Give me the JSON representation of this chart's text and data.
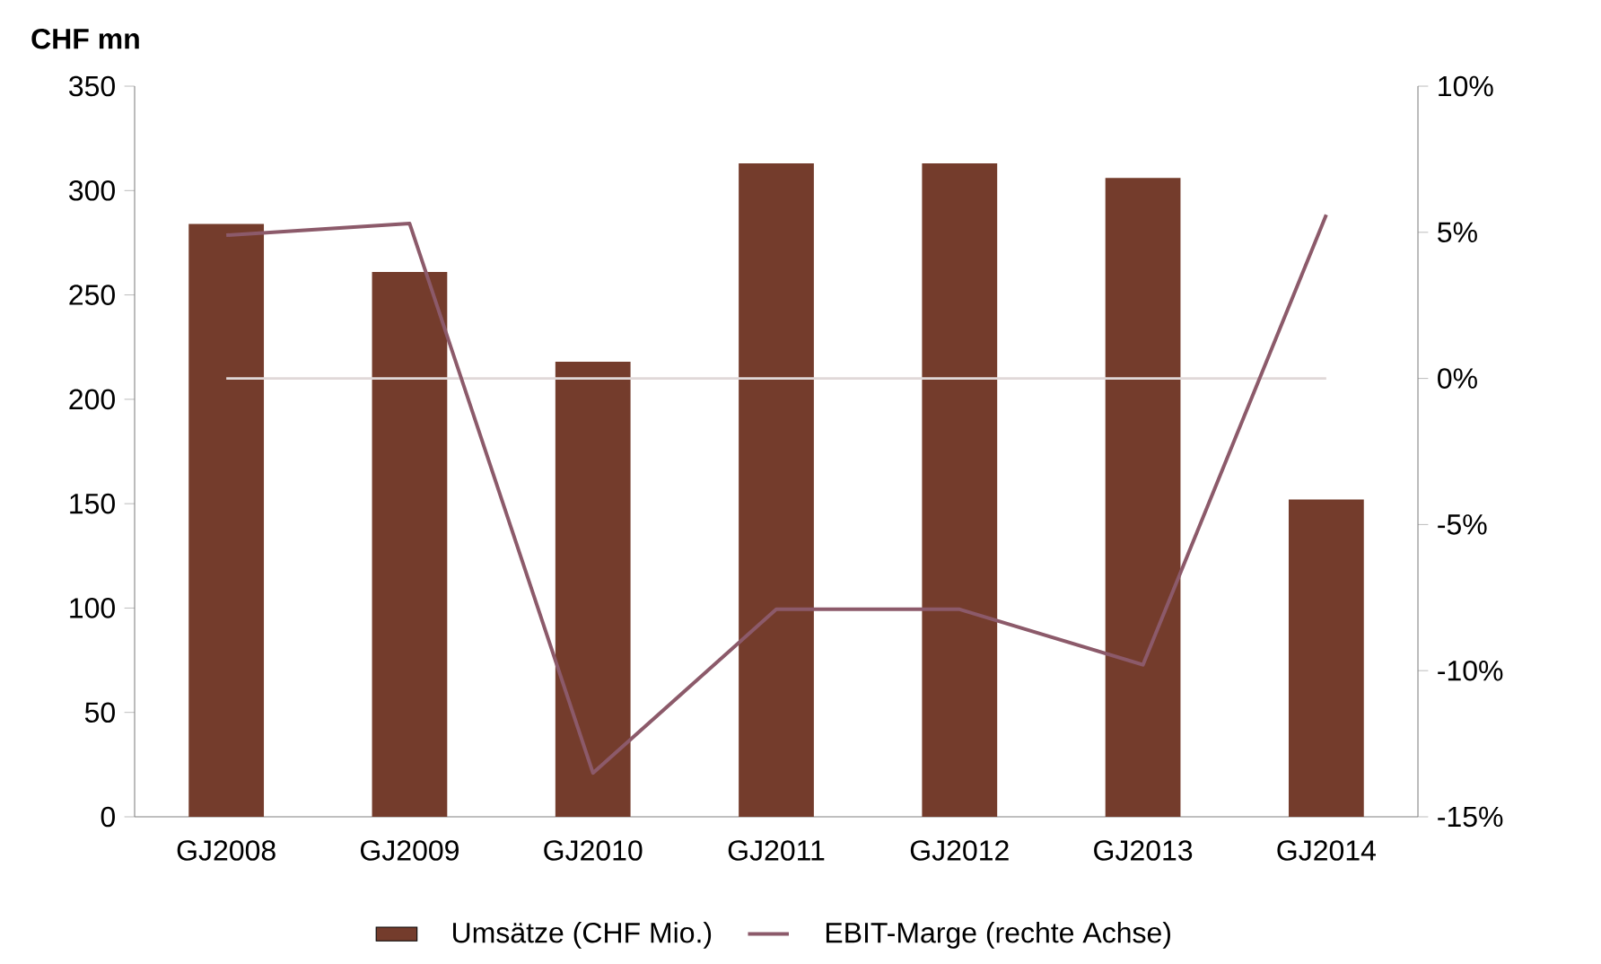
{
  "chart_data": {
    "type": "bar",
    "title": "CHF mn",
    "categories": [
      "GJ2008",
      "GJ2009",
      "GJ2010",
      "GJ2011",
      "GJ2012",
      "GJ2013",
      "GJ2014"
    ],
    "series": [
      {
        "name": "Umsätze (CHF Mio.)",
        "color": "#743c2c",
        "values": [
          284,
          261,
          218,
          313,
          313,
          306,
          152
        ]
      },
      {
        "name": "EBIT-Marge (rechte Achse)",
        "type": "line",
        "axis": "y2",
        "color": "#8c5a6a",
        "values": [
          4.9,
          5.3,
          -13.5,
          -7.9,
          -7.9,
          -9.8,
          5.6
        ]
      }
    ],
    "ylim": [
      0,
      350
    ],
    "yticks": [
      0,
      50,
      100,
      150,
      200,
      250,
      300,
      350
    ],
    "y2lim": [
      -15,
      10
    ],
    "y2ticks": [
      {
        "value": -15,
        "label": "-15%"
      },
      {
        "value": -10,
        "label": "-10%"
      },
      {
        "value": -5,
        "label": "-5%"
      },
      {
        "value": 0,
        "label": "0%"
      },
      {
        "value": 5,
        "label": "5%"
      },
      {
        "value": 10,
        "label": "10%"
      }
    ],
    "ref_lines": [
      {
        "axis": "y2",
        "value": 0,
        "color": "#e0d8d8"
      }
    ],
    "grid": false,
    "legend": "bottom",
    "marker": "none",
    "line_style": "solid"
  }
}
